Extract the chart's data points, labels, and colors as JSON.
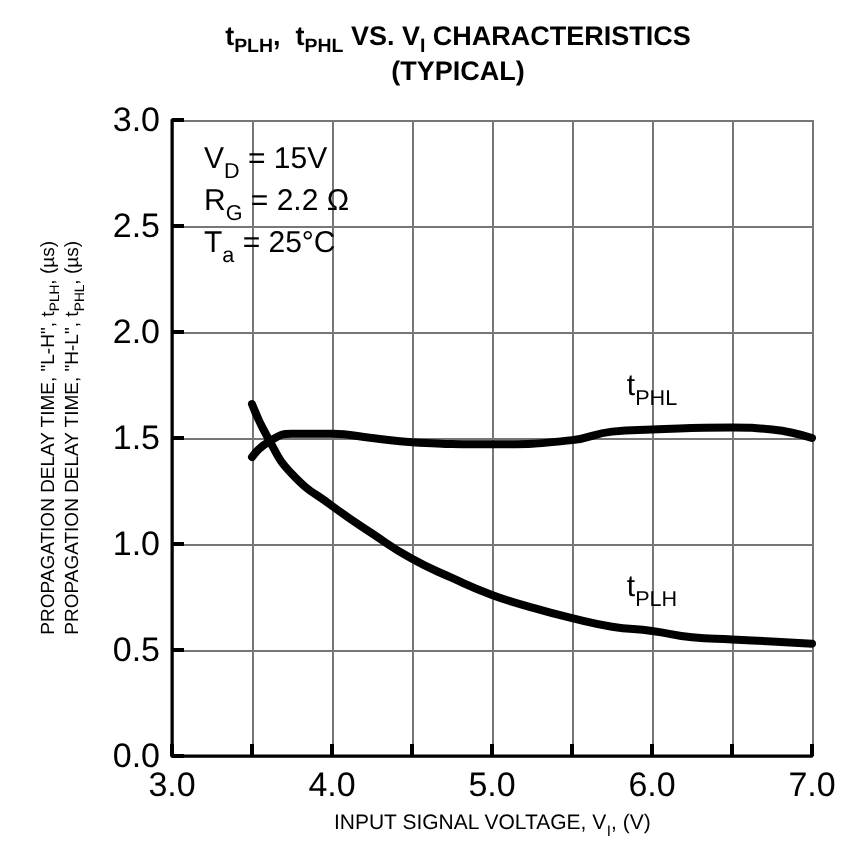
{
  "chart_data": {
    "type": "line",
    "title": "t$_{PLH}$,  t$_{PHL}$ VS. V$_{I}$ CHARACTERISTICS\n(TYPICAL)",
    "xlabel": "INPUT SIGNAL VOLTAGE, V$_{I}$, (V)",
    "ylabel": "PROPAGATION DELAY TIME, \"L-H\", t$_{PLH}$, (µs)\nPROPAGATION DELAY TIME, \"H-L\", t$_{PHL}$, (µs)",
    "annotations": [
      "V$_{D}$ = 15V",
      "R$_{G}$ = 2.2 Ω",
      "T$_{a}$ = 25°C"
    ],
    "xlim": [
      3,
      7
    ],
    "xticks": [
      {
        "value": 3,
        "label": "3.0"
      },
      {
        "value": 3.5,
        "label": null
      },
      {
        "value": 4,
        "label": "4.0"
      },
      {
        "value": 4.5,
        "label": null
      },
      {
        "value": 5,
        "label": "5.0"
      },
      {
        "value": 5.5,
        "label": null
      },
      {
        "value": 6,
        "label": "6.0"
      },
      {
        "value": 6.5,
        "label": null
      },
      {
        "value": 7,
        "label": "7.0"
      }
    ],
    "ylim": [
      0,
      3
    ],
    "yticks": [
      {
        "value": 0,
        "label": "0.0"
      },
      {
        "value": 0.5,
        "label": "0.5"
      },
      {
        "value": 1,
        "label": "1.0"
      },
      {
        "value": 1.5,
        "label": "1.5"
      },
      {
        "value": 2,
        "label": "2.0"
      },
      {
        "value": 2.5,
        "label": "2.5"
      },
      {
        "value": 3,
        "label": "3.0"
      }
    ],
    "grid": true,
    "line_style": "solid",
    "marker": "none",
    "series": [
      {
        "name": "t$_{PLH}$",
        "color": "#000000",
        "x": [
          3.5,
          3.6,
          3.75,
          4.0,
          4.25,
          4.5,
          4.75,
          5.0,
          5.25,
          5.5,
          5.75,
          6.0,
          6.25,
          6.5,
          6.75,
          7.0
        ],
        "values": [
          1.66,
          1.5,
          1.33,
          1.18,
          1.05,
          0.93,
          0.84,
          0.76,
          0.7,
          0.65,
          0.61,
          0.59,
          0.56,
          0.55,
          0.54,
          0.53
        ]
      },
      {
        "name": "t$_{PHL}$",
        "color": "#000000",
        "x": [
          3.5,
          3.6,
          3.75,
          4.0,
          4.25,
          4.5,
          5.0,
          5.5,
          5.75,
          6.0,
          6.5,
          6.75,
          7.0
        ],
        "values": [
          1.41,
          1.48,
          1.52,
          1.52,
          1.5,
          1.48,
          1.47,
          1.49,
          1.53,
          1.54,
          1.55,
          1.54,
          1.5
        ]
      }
    ]
  }
}
